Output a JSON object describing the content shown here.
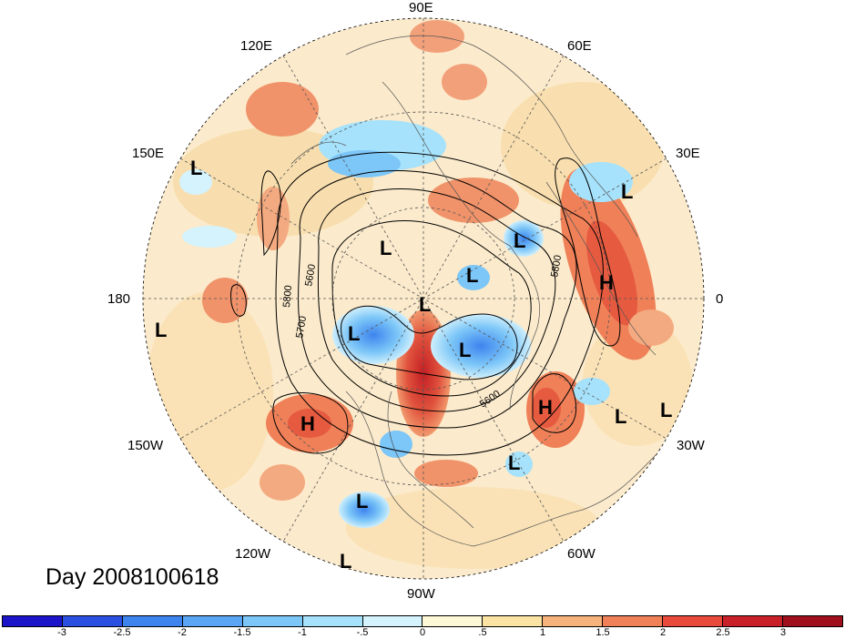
{
  "title": "Day 2008100618",
  "longitude_labels": {
    "lon_90e": "90E",
    "lon_60e": "60E",
    "lon_30e": "30E",
    "lon_0": "0",
    "lon_30w": "30W",
    "lon_60w": "60W",
    "lon_90w": "90W",
    "lon_120w": "120W",
    "lon_150w": "150W",
    "lon_180": "180",
    "lon_150e": "150E",
    "lon_120e": "120E"
  },
  "contour_labels": [
    "5600",
    "5800",
    "5700",
    "5600",
    "5800"
  ],
  "pressure_systems": [
    {
      "type": "L"
    },
    {
      "type": "L"
    },
    {
      "type": "L"
    },
    {
      "type": "L"
    },
    {
      "type": "L"
    },
    {
      "type": "L"
    },
    {
      "type": "L"
    },
    {
      "type": "L"
    },
    {
      "type": "L"
    },
    {
      "type": "L"
    },
    {
      "type": "L"
    },
    {
      "type": "L"
    },
    {
      "type": "L"
    },
    {
      "type": "L"
    },
    {
      "type": "H"
    },
    {
      "type": "H"
    },
    {
      "type": "H"
    }
  ],
  "colorbar": {
    "colors": [
      "#1b14c8",
      "#2b4fe0",
      "#3d84ee",
      "#5aa6f4",
      "#7cc6f8",
      "#a6e2fb",
      "#d4f3fd",
      "#fdf8d6",
      "#fbe3a4",
      "#f6b47c",
      "#ef8058",
      "#e94a3c",
      "#c9212a",
      "#a0101c"
    ],
    "ticks": [
      "-3",
      "-2.5",
      "-2",
      "-1.5",
      "-1",
      "-.5",
      "0",
      ".5",
      "1",
      "1.5",
      "2",
      "2.5",
      "3"
    ]
  },
  "colors": {
    "anomaly_positive_strong": "#d03a30",
    "anomaly_positive": "#f0936a",
    "anomaly_negative": "#6ab4f0",
    "background_field": "#fbeacb"
  }
}
